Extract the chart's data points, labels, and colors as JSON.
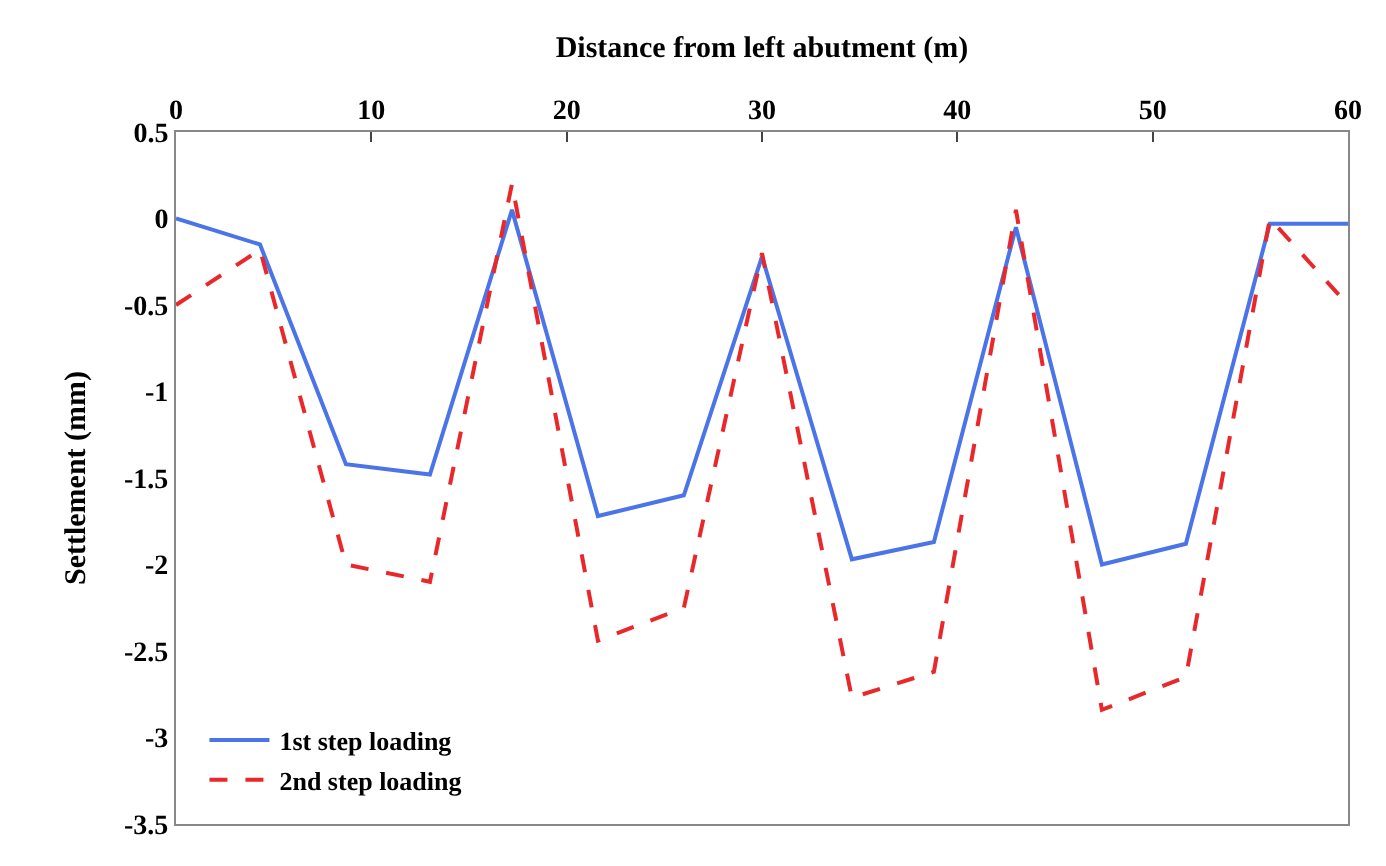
{
  "chart_data": {
    "type": "line",
    "xlabel": "Distance from left abutment (m)",
    "ylabel": "Settlement (mm)",
    "x": [
      0,
      4.3,
      8.7,
      13,
      17.2,
      21.6,
      26,
      30,
      34.6,
      38.8,
      43,
      47.4,
      51.7,
      56,
      60
    ],
    "series": [
      {
        "name": "1st step loading",
        "color": "#4a74e8",
        "line_style": "solid",
        "values": [
          0,
          -0.15,
          -1.42,
          -1.48,
          0.05,
          -1.72,
          -1.6,
          -0.22,
          -1.97,
          -1.87,
          -0.05,
          -2.0,
          -1.88,
          -0.03,
          -0.03
        ]
      },
      {
        "name": "2nd step loading",
        "color": "#e8282a",
        "line_style": "dashed",
        "values": [
          -0.5,
          -0.18,
          -2.0,
          -2.1,
          0.2,
          -2.44,
          -2.25,
          -0.2,
          -2.77,
          -2.62,
          0.05,
          -2.84,
          -2.65,
          0.0,
          -0.5
        ]
      }
    ],
    "xlim": [
      0,
      60
    ],
    "xticks": [
      0,
      10,
      20,
      30,
      40,
      50,
      60
    ],
    "ylim": [
      -3.5,
      0.5
    ],
    "yticks": [
      -3.5,
      -3,
      -2.5,
      -2,
      -1.5,
      -1,
      -0.5,
      0,
      0.5
    ],
    "legend": "bottom left",
    "marker": "none"
  }
}
